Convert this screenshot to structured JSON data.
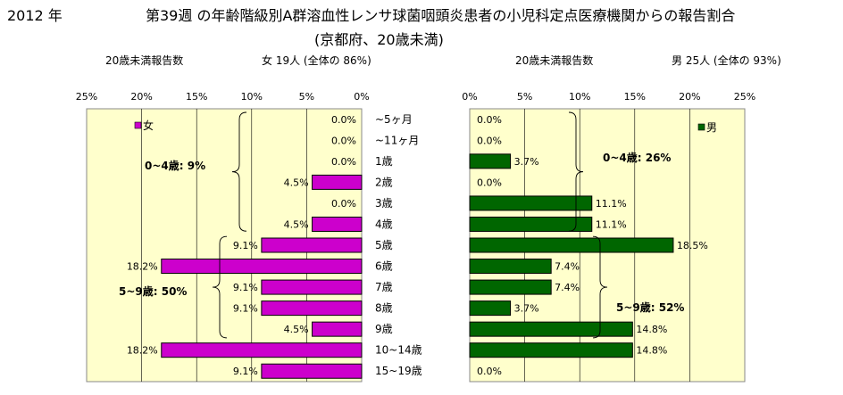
{
  "header": {
    "year": "2012 年",
    "title_line1": "第39週 の年齢階級別A群溶血性レンサ球菌咽頭炎患者の小児科定点医療機関からの報告割合",
    "title_line2": "(京都府、20歳未満)"
  },
  "left_panel": {
    "caption": "20歳未満報告数",
    "summary": "女 19人 (全体の 86%)",
    "legend": "女",
    "annotation_1": "0~4歳: 9%",
    "annotation_2": "5~9歳: 50%"
  },
  "right_panel": {
    "caption": "20歳未満報告数",
    "summary": "男 25人 (全体の 93%)",
    "legend": "男",
    "annotation_1": "0~4歳: 26%",
    "annotation_2": "5~9歳: 52%"
  },
  "colors": {
    "female_bar": "#cc00cc",
    "male_bar": "#006600",
    "plot_background": "#ffffcc"
  },
  "chart_data": [
    {
      "type": "bar",
      "orientation": "horizontal-reversed",
      "series": [
        {
          "name": "女",
          "values": [
            0.0,
            0.0,
            0.0,
            4.5,
            0.0,
            4.5,
            9.1,
            18.2,
            9.1,
            9.1,
            4.5,
            18.2,
            9.1
          ],
          "labels": [
            "0.0%",
            "0.0%",
            "0.0%",
            "4.5%",
            "0.0%",
            "4.5%",
            "9.1%",
            "18.2%",
            "9.1%",
            "9.1%",
            "4.5%",
            "18.2%",
            "9.1%"
          ]
        }
      ],
      "xlim": [
        0,
        25
      ],
      "xticks": [
        "0%",
        "5%",
        "10%",
        "15%",
        "20%",
        "25%"
      ],
      "grid": true,
      "legend_position": "top-left"
    },
    {
      "type": "bar",
      "orientation": "horizontal",
      "series": [
        {
          "name": "男",
          "values": [
            0.0,
            0.0,
            3.7,
            0.0,
            11.1,
            11.1,
            18.5,
            7.4,
            7.4,
            3.7,
            14.8,
            14.8,
            0.0
          ],
          "labels": [
            "0.0%",
            "0.0%",
            "3.7%",
            "0.0%",
            "11.1%",
            "11.1%",
            "18.5%",
            "7.4%",
            "7.4%",
            "3.7%",
            "14.8%",
            "14.8%",
            "0.0%"
          ]
        }
      ],
      "xlim": [
        0,
        25
      ],
      "xticks": [
        "0%",
        "5%",
        "10%",
        "15%",
        "20%",
        "25%"
      ],
      "grid": true,
      "legend_position": "top-right"
    }
  ],
  "age_categories": [
    "~5ヶ月",
    "~11ヶ月",
    "1歳",
    "2歳",
    "3歳",
    "4歳",
    "5歳",
    "6歳",
    "7歳",
    "8歳",
    "9歳",
    "10~14歳",
    "15~19歳"
  ]
}
